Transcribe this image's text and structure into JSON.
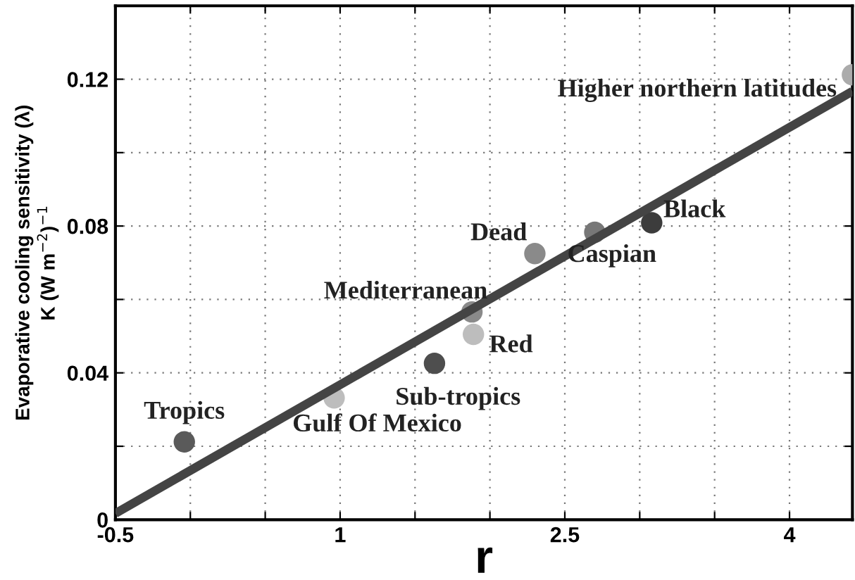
{
  "chart_data": {
    "type": "scatter",
    "xlabel": "r",
    "ylabel": "Evaporative cooling sensitivity (λ)\nK (W m$^{−2}$)$^{−1}$",
    "xlim": [
      -0.5,
      4.42
    ],
    "ylim": [
      0,
      0.14
    ],
    "xticks": [
      -0.5,
      {
        "value": 0,
        "label": null
      },
      {
        "value": 0.5,
        "label": null
      },
      1,
      {
        "value": 1.5,
        "label": null
      },
      {
        "value": 2,
        "label": null
      },
      2.5,
      {
        "value": 3,
        "label": null
      },
      {
        "value": 3.5,
        "label": null
      },
      4
    ],
    "yticks": [
      0,
      {
        "value": 0.02,
        "label": null
      },
      0.04,
      {
        "value": 0.06,
        "label": null
      },
      0.08,
      {
        "value": 0.1,
        "label": null
      },
      0.12
    ],
    "grid": true,
    "series": [
      {
        "marker": "circle",
        "x": [
          -0.04,
          0.96,
          1.63,
          1.88,
          1.89,
          2.3,
          2.7,
          3.08,
          4.42
        ],
        "values": [
          0.0212,
          0.0332,
          0.0426,
          0.0566,
          0.0505,
          0.0725,
          0.0783,
          0.0809,
          0.1212
        ],
        "colors": [
          "#5a5a5a",
          "#bdbdbd",
          "#4e4e4e",
          "#8a8a8a",
          "#bdbdbd",
          "#8a8a8a",
          "#777777",
          "#3c3c3c",
          "#ababab"
        ]
      },
      {
        "type": "line",
        "x": [
          -0.5,
          4.42
        ],
        "values": [
          0.0017,
          0.1167
        ],
        "color": "#444444",
        "line_style": "solid",
        "marker": "none"
      }
    ],
    "annotations": [
      {
        "text": "Tropics",
        "x": -0.04,
        "y": 0.0212
      },
      {
        "text": "Gulf Of Mexico",
        "x": 0.96,
        "y": 0.0332
      },
      {
        "text": "Sub-tropics",
        "x": 1.63,
        "y": 0.0426
      },
      {
        "text": "Mediterranean",
        "x": 1.88,
        "y": 0.0566
      },
      {
        "text": "Red",
        "x": 1.89,
        "y": 0.0505
      },
      {
        "text": "Dead",
        "x": 2.3,
        "y": 0.0725
      },
      {
        "text": "Caspian",
        "x": 2.7,
        "y": 0.0783
      },
      {
        "text": "Black",
        "x": 3.08,
        "y": 0.0809
      },
      {
        "text": "Higher northern latitudes",
        "x": 4.42,
        "y": 0.1212
      }
    ]
  }
}
